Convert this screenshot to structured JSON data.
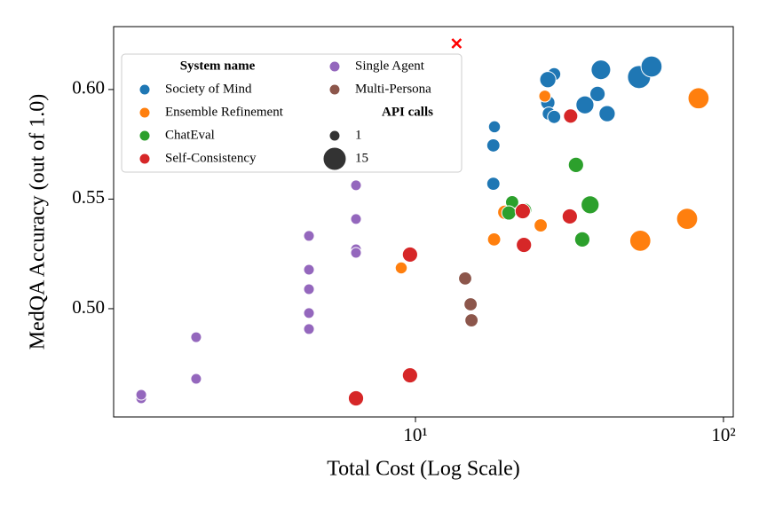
{
  "chart_data": {
    "type": "scatter",
    "x_label": "Total Cost (Log Scale)",
    "y_label": "MedQA Accuracy (out of 1.0)",
    "x_log": true,
    "xlim": [
      1.047,
      107.6
    ],
    "ylim": [
      0.4506,
      0.6287
    ],
    "xticks": [
      {
        "value": 10,
        "label": "10¹"
      },
      {
        "value": 100,
        "label": "10²"
      }
    ],
    "yticks": [
      {
        "value": 0.5,
        "label": "0.50"
      },
      {
        "value": 0.55,
        "label": "0.55"
      },
      {
        "value": 0.6,
        "label": "0.60"
      }
    ],
    "legend_title": "System name",
    "size_legend_title": "API calls",
    "size_legend": [
      1,
      15
    ],
    "series": [
      {
        "name": "Society of Mind",
        "color": "#1f77b4",
        "x": [
          18.05,
          17.9,
          17.9,
          28.2,
          26.9,
          26.9,
          27.1,
          28.2,
          35.5,
          39.0,
          40.0,
          41.9,
          53.2,
          58.4
        ],
        "values": [
          0.583,
          0.5745,
          0.557,
          0.607,
          0.6045,
          0.594,
          0.589,
          0.5875,
          0.593,
          0.598,
          0.609,
          0.589,
          0.6057,
          0.6105
        ],
        "sizes": [
          2,
          3,
          3,
          3,
          6,
          4,
          3,
          3,
          8,
          5,
          10,
          6,
          15,
          12
        ]
      },
      {
        "name": "Ensemble Refinement",
        "color": "#ff7f0e",
        "x": [
          26.3,
          83.0,
          19.5,
          18.0,
          25.5,
          8.99,
          53.7,
          76.2
        ],
        "values": [
          0.597,
          0.596,
          0.544,
          0.5316,
          0.538,
          0.5186,
          0.531,
          0.541
        ],
        "sizes": [
          2,
          12,
          4,
          3,
          3,
          2,
          12,
          12
        ]
      },
      {
        "name": "ChatEval",
        "color": "#2ca02c",
        "x": [
          33.2,
          36.9,
          34.8,
          20.6,
          20.1,
          22.6
        ],
        "values": [
          0.5656,
          0.5474,
          0.5316,
          0.5486,
          0.5437,
          0.545
        ],
        "sizes": [
          5,
          8,
          5,
          3,
          4,
          4
        ]
      },
      {
        "name": "Self-Consistency",
        "color": "#d62728",
        "x": [
          31.9,
          22.3,
          22.5,
          31.7,
          9.6,
          9.6,
          6.41
        ],
        "values": [
          0.5879,
          0.5445,
          0.5291,
          0.5421,
          0.5247,
          0.4696,
          0.4591
        ],
        "sizes": [
          4,
          5,
          5,
          5,
          5,
          5,
          5
        ]
      },
      {
        "name": "Single Agent",
        "color": "#9467bd",
        "x": [
          1.287,
          1.287,
          1.94,
          1.94,
          4.51,
          4.51,
          4.51,
          4.51,
          4.51,
          6.41,
          6.41,
          6.41,
          6.41
        ],
        "values": [
          0.4591,
          0.4607,
          0.468,
          0.487,
          0.5332,
          0.5178,
          0.5089,
          0.498,
          0.4907,
          0.5563,
          0.5409,
          0.5271,
          0.5255
        ],
        "sizes": [
          1,
          1,
          1,
          1,
          1,
          1,
          1,
          1,
          1,
          1,
          1,
          1,
          1
        ]
      },
      {
        "name": "Multi-Persona",
        "color": "#8c564b",
        "x": [
          14.5,
          15.1,
          15.2
        ],
        "values": [
          0.5138,
          0.502,
          0.4947
        ],
        "sizes": [
          3,
          3,
          3
        ]
      }
    ],
    "highlight": {
      "x": 13.6,
      "y": 0.621,
      "color": "#ff0000"
    }
  }
}
